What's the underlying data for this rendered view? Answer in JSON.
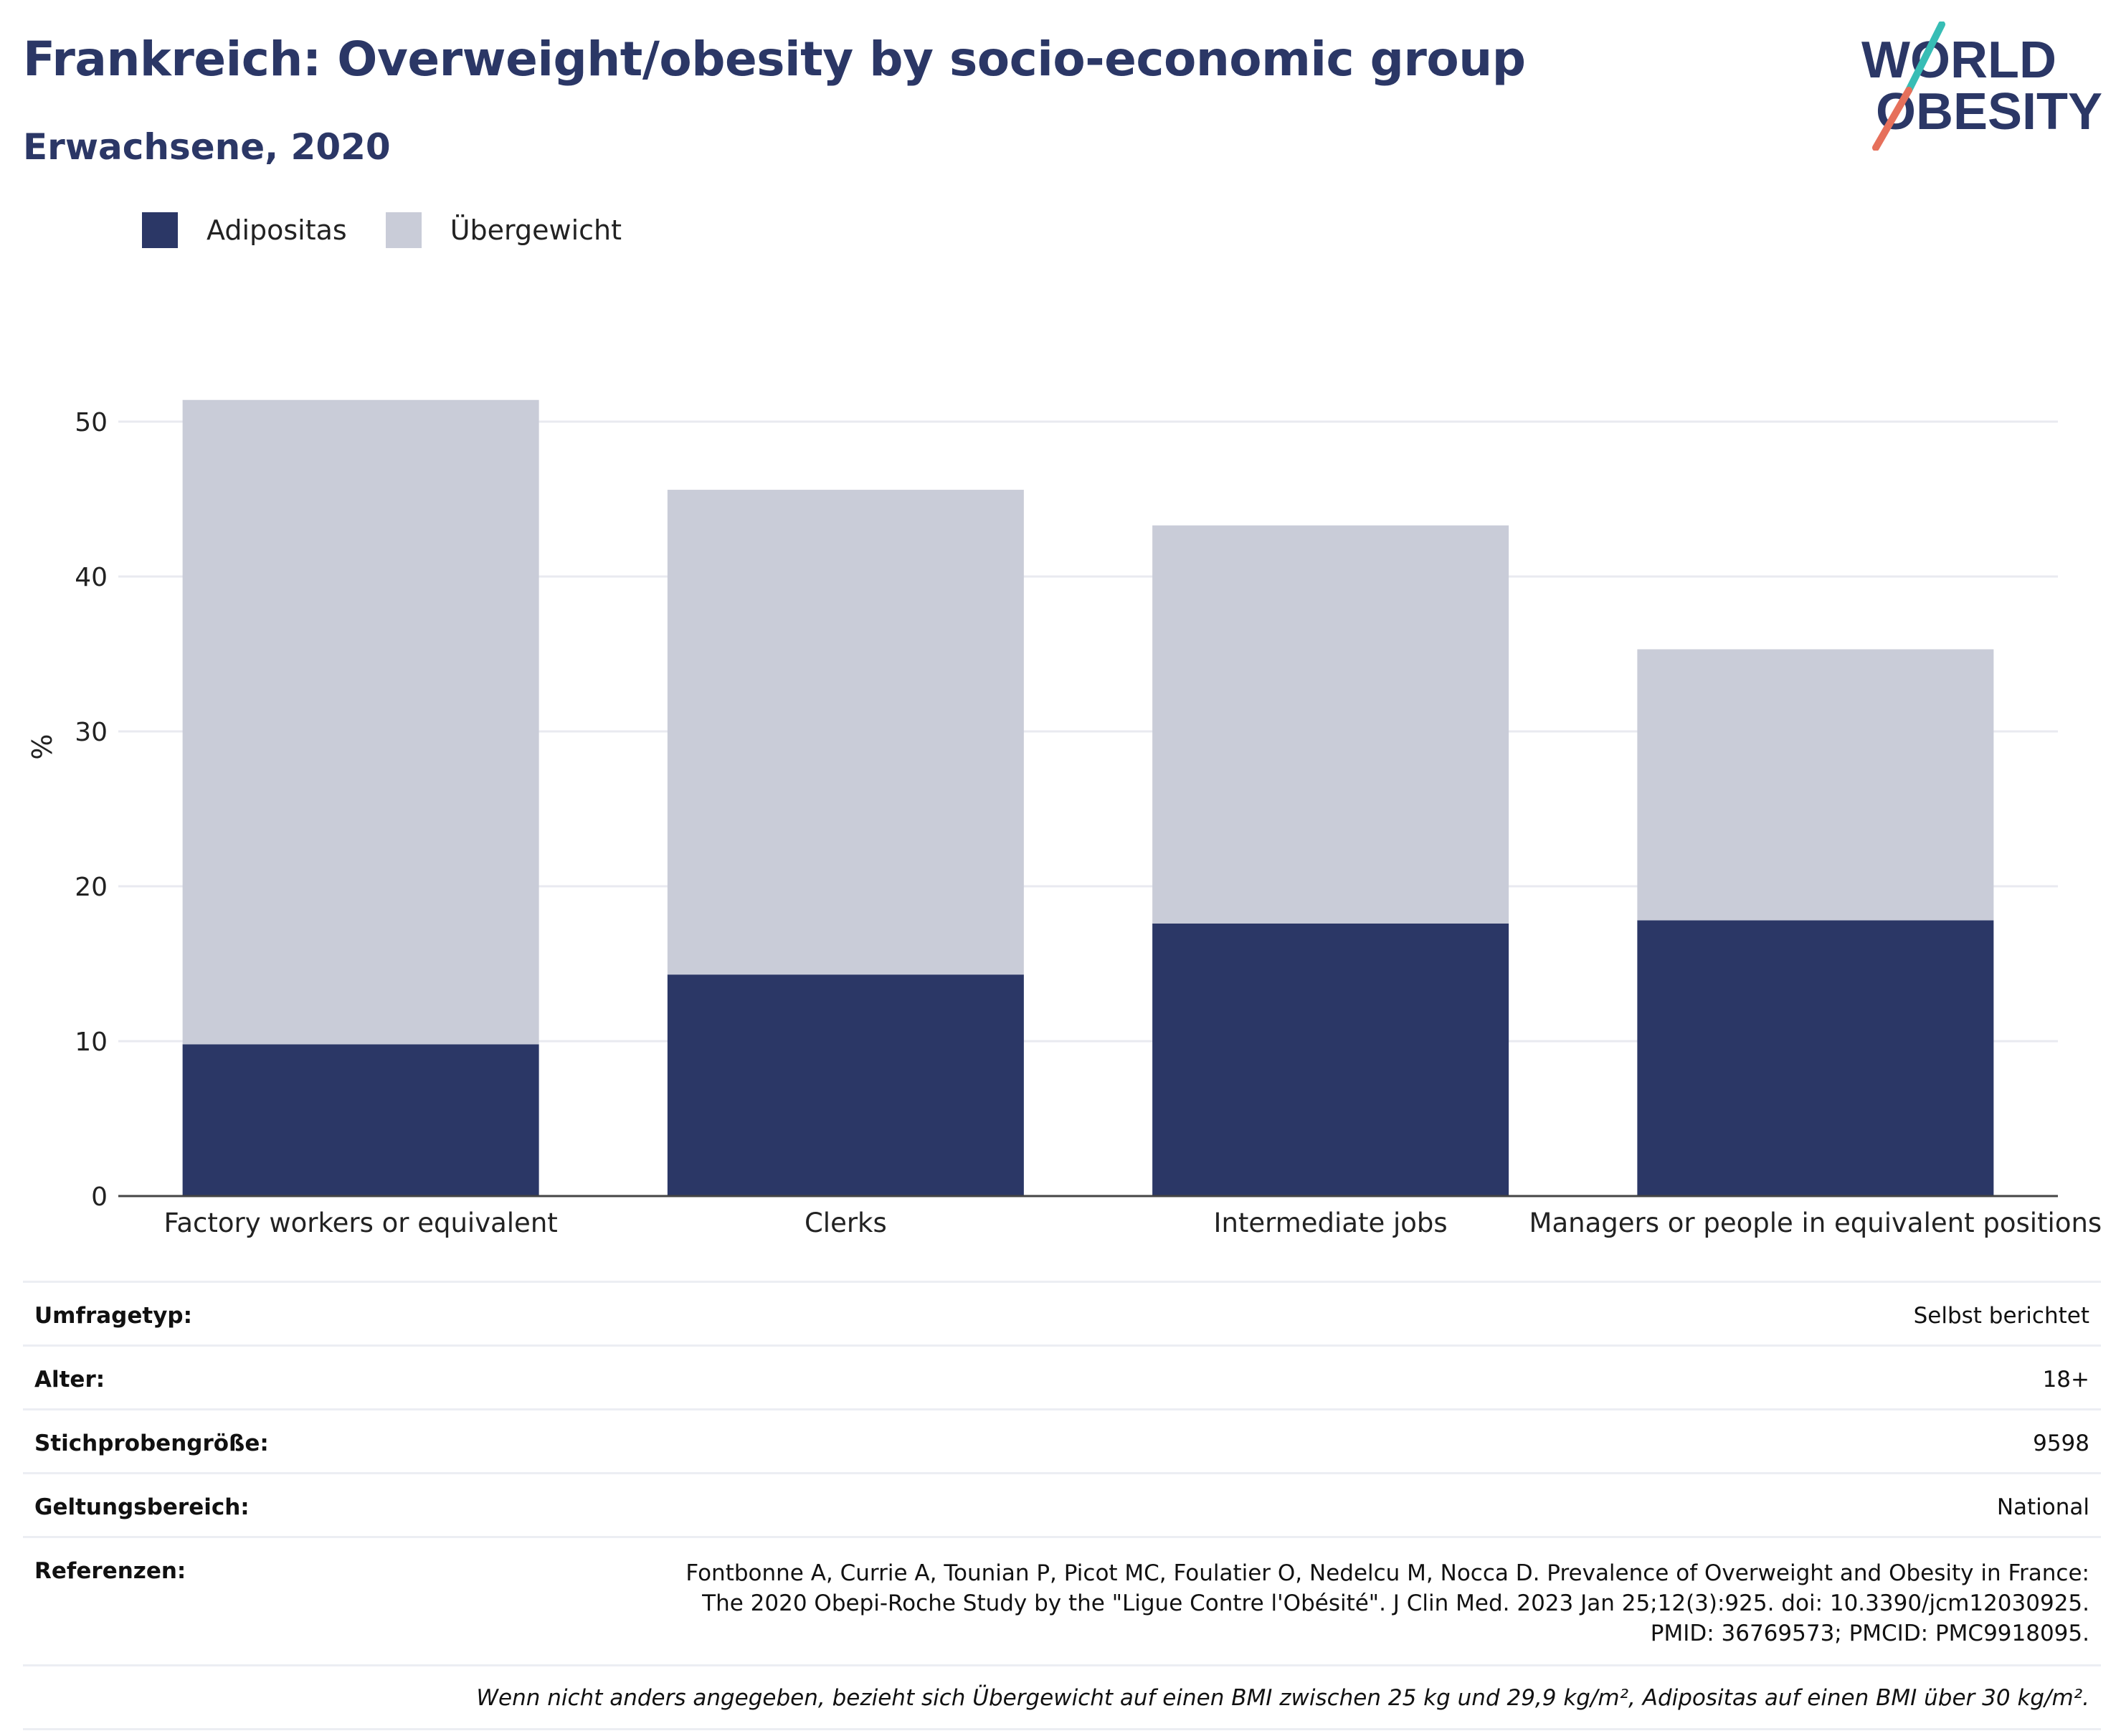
{
  "header": {
    "title": "Frankreich: Overweight/obesity by socio-economic group",
    "subtitle": "Erwachsene, 2020"
  },
  "logo": {
    "line1": "WORLD",
    "line2": "OBESITY",
    "accent_teal": "#37bdb5",
    "accent_coral": "#e6705b",
    "text_color": "#2b3766"
  },
  "legend": [
    {
      "label": "Adipositas",
      "color": "#2b3766"
    },
    {
      "label": "Übergewicht",
      "color": "#c9ccd8"
    }
  ],
  "chart_data": {
    "type": "bar",
    "stacked": true,
    "categories": [
      "Factory workers or equivalent",
      "Clerks",
      "Intermediate jobs",
      "Managers or people in equivalent positions"
    ],
    "series": [
      {
        "name": "Adipositas",
        "values": [
          9.8,
          14.3,
          17.6,
          17.8
        ],
        "color": "#2b3766"
      },
      {
        "name": "Übergewicht",
        "values": [
          41.6,
          31.3,
          25.7,
          17.5
        ],
        "color": "#c9ccd8"
      }
    ],
    "ylabel": "%",
    "yticks": [
      0,
      10,
      20,
      30,
      40,
      50
    ],
    "ylim": [
      0,
      55
    ],
    "grid": true,
    "legend_position": "top-left"
  },
  "meta": {
    "rows": [
      {
        "label": "Umfragetyp:",
        "value": "Selbst berichtet"
      },
      {
        "label": "Alter:",
        "value": "18+"
      },
      {
        "label": "Stichprobengröße:",
        "value": "9598"
      },
      {
        "label": "Geltungsbereich:",
        "value": "National"
      }
    ],
    "references_label": "Referenzen:",
    "references_value": "Fontbonne A, Currie A, Tounian P, Picot MC, Foulatier O, Nedelcu M, Nocca D. Prevalence of Overweight and Obesity in France: The 2020 Obepi-Roche Study by the \"Ligue Contre l'Obésité\". J Clin Med. 2023 Jan 25;12(3):925. doi: 10.3390/jcm12030925. PMID: 36769573; PMCID: PMC9918095.",
    "footnote": "Wenn nicht anders angegeben, bezieht sich Übergewicht auf einen BMI zwischen 25 kg und 29,9 kg/m², Adipositas auf einen BMI über 30 kg/m²."
  }
}
